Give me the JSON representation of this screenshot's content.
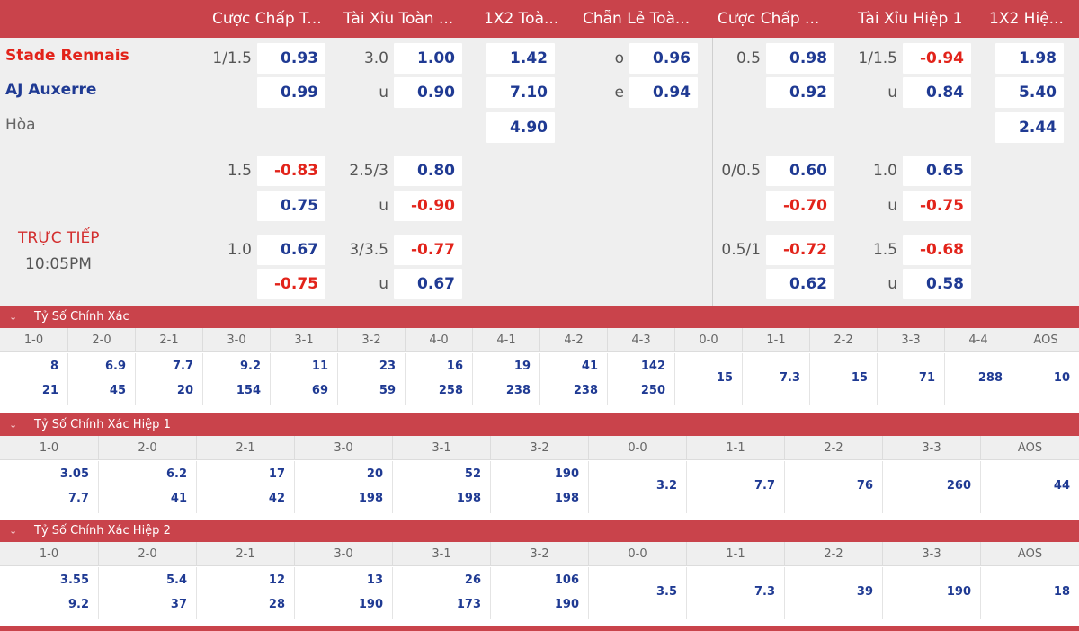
{
  "header": [
    "Cược Chấp T...",
    "Tài Xỉu Toàn ...",
    "1X2 Toà...",
    "Chẵn Lẻ Toà...",
    "Cược Chấp ...",
    "Tài Xỉu Hiệp 1",
    "1X2 Hiệ..."
  ],
  "match": {
    "home": "Stade Rennais",
    "away": "AJ Auxerre",
    "draw": "Hòa",
    "status": "TRỰC TIẾP",
    "time": "10:05PM"
  },
  "rows": [
    {
      "ah_line": "1/1.5",
      "ah_home": "0.93",
      "ah_away": "0.99",
      "ou_line": "3.0",
      "ou_over": "1.00",
      "ou_u": "u",
      "ou_under": "0.90",
      "x_home": "1.42",
      "x_away": "7.10",
      "x_draw": "4.90",
      "oe_o": "o",
      "oe_odd": "0.96",
      "oe_e": "e",
      "oe_even": "0.94",
      "h1_ah_line": "0.5",
      "h1_ah_home": "0.98",
      "h1_ah_away": "0.92",
      "h1_ou_line": "1/1.5",
      "h1_ou_over": "-0.94",
      "h1_ou_u": "u",
      "h1_ou_under": "0.84",
      "h1x_home": "1.98",
      "h1x_away": "5.40",
      "h1x_draw": "2.44"
    },
    {
      "ah_line": "1.5",
      "ah_home": "-0.83",
      "ah_away": "0.75",
      "ou_line": "2.5/3",
      "ou_over": "0.80",
      "ou_u": "u",
      "ou_under": "-0.90",
      "h1_ah_line": "0/0.5",
      "h1_ah_home": "0.60",
      "h1_ah_away": "-0.70",
      "h1_ou_line": "1.0",
      "h1_ou_over": "0.65",
      "h1_ou_u": "u",
      "h1_ou_under": "-0.75"
    },
    {
      "ah_line": "1.0",
      "ah_home": "0.67",
      "ah_away": "-0.75",
      "ou_line": "3/3.5",
      "ou_over": "-0.77",
      "ou_u": "u",
      "ou_under": "0.67",
      "h1_ah_line": "0.5/1",
      "h1_ah_home": "-0.72",
      "h1_ah_away": "0.62",
      "h1_ou_line": "1.5",
      "h1_ou_over": "-0.68",
      "h1_ou_u": "u",
      "h1_ou_under": "0.58"
    }
  ],
  "correct_score": {
    "title": "Tỷ Số Chính Xác",
    "labels": [
      "1-0",
      "2-0",
      "2-1",
      "3-0",
      "3-1",
      "3-2",
      "4-0",
      "4-1",
      "4-2",
      "4-3",
      "0-0",
      "1-1",
      "2-2",
      "3-3",
      "4-4",
      "AOS"
    ],
    "values": [
      [
        "8",
        "21"
      ],
      [
        "6.9",
        "45"
      ],
      [
        "7.7",
        "20"
      ],
      [
        "9.2",
        "154"
      ],
      [
        "11",
        "69"
      ],
      [
        "23",
        "59"
      ],
      [
        "16",
        "258"
      ],
      [
        "19",
        "238"
      ],
      [
        "41",
        "238"
      ],
      [
        "142",
        "250"
      ],
      [
        "15"
      ],
      [
        "7.3"
      ],
      [
        "15"
      ],
      [
        "71"
      ],
      [
        "288"
      ],
      [
        "10"
      ]
    ]
  },
  "correct_score_h1": {
    "title": "Tỷ Số Chính Xác Hiệp 1",
    "labels": [
      "1-0",
      "2-0",
      "2-1",
      "3-0",
      "3-1",
      "3-2",
      "0-0",
      "1-1",
      "2-2",
      "3-3",
      "AOS"
    ],
    "values": [
      [
        "3.05",
        "7.7"
      ],
      [
        "6.2",
        "41"
      ],
      [
        "17",
        "42"
      ],
      [
        "20",
        "198"
      ],
      [
        "52",
        "198"
      ],
      [
        "190",
        "198"
      ],
      [
        "3.2"
      ],
      [
        "7.7"
      ],
      [
        "76"
      ],
      [
        "260"
      ],
      [
        "44"
      ]
    ]
  },
  "correct_score_h2": {
    "title": "Tỷ Số Chính Xác Hiệp 2",
    "labels": [
      "1-0",
      "2-0",
      "2-1",
      "3-0",
      "3-1",
      "3-2",
      "0-0",
      "1-1",
      "2-2",
      "3-3",
      "AOS"
    ],
    "values": [
      [
        "3.55",
        "9.2"
      ],
      [
        "5.4",
        "37"
      ],
      [
        "12",
        "28"
      ],
      [
        "13",
        "190"
      ],
      [
        "26",
        "173"
      ],
      [
        "106",
        "190"
      ],
      [
        "3.5"
      ],
      [
        "7.3"
      ],
      [
        "39"
      ],
      [
        "190"
      ],
      [
        "18"
      ]
    ]
  }
}
